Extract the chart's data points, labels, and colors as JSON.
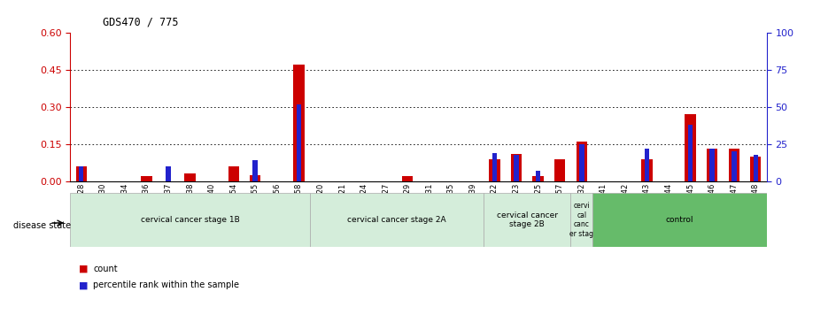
{
  "title": "GDS470 / 775",
  "samples": [
    "GSM7828",
    "GSM7830",
    "GSM7834",
    "GSM7836",
    "GSM7837",
    "GSM7838",
    "GSM7840",
    "GSM7854",
    "GSM7855",
    "GSM7856",
    "GSM7858",
    "GSM7820",
    "GSM7821",
    "GSM7824",
    "GSM7827",
    "GSM7829",
    "GSM7831",
    "GSM7835",
    "GSM7839",
    "GSM7822",
    "GSM7823",
    "GSM7825",
    "GSM7857",
    "GSM7832",
    "GSM7841",
    "GSM7842",
    "GSM7843",
    "GSM7844",
    "GSM7845",
    "GSM7846",
    "GSM7847",
    "GSM7848"
  ],
  "count": [
    0.06,
    0.0,
    0.0,
    0.02,
    0.0,
    0.03,
    0.0,
    0.06,
    0.025,
    0.0,
    0.47,
    0.0,
    0.0,
    0.0,
    0.0,
    0.02,
    0.0,
    0.0,
    0.0,
    0.09,
    0.11,
    0.02,
    0.09,
    0.16,
    0.0,
    0.0,
    0.09,
    0.0,
    0.27,
    0.13,
    0.13,
    0.1
  ],
  "percentile": [
    10,
    0,
    0,
    0,
    10,
    0,
    0,
    0,
    14,
    0,
    52,
    0,
    0,
    0,
    0,
    0,
    0,
    0,
    0,
    19,
    18,
    7,
    0,
    25,
    0,
    0,
    22,
    0,
    38,
    22,
    20,
    18
  ],
  "groups": [
    {
      "label": "cervical cancer stage 1B",
      "start": 0,
      "end": 10,
      "color": "#d4edda"
    },
    {
      "label": "cervical cancer stage 2A",
      "start": 11,
      "end": 18,
      "color": "#d4edda"
    },
    {
      "label": "cervical cancer\nstage 2B",
      "start": 19,
      "end": 22,
      "color": "#d4edda"
    },
    {
      "label": "cervi\ncal\ncanc\ner stag",
      "start": 23,
      "end": 23,
      "color": "#d4edda"
    },
    {
      "label": "control",
      "start": 24,
      "end": 31,
      "color": "#66bb6a"
    }
  ],
  "ylim_left": [
    0,
    0.6
  ],
  "ylim_right": [
    0,
    100
  ],
  "yticks_left": [
    0,
    0.15,
    0.3,
    0.45,
    0.6
  ],
  "yticks_right": [
    0,
    25,
    50,
    75,
    100
  ],
  "count_color": "#cc0000",
  "percentile_color": "#2222cc",
  "left_axis_color": "#cc0000",
  "right_axis_color": "#2222cc",
  "legend_count_label": "count",
  "legend_pct_label": "percentile rank within the sample",
  "bar_width": 0.5
}
